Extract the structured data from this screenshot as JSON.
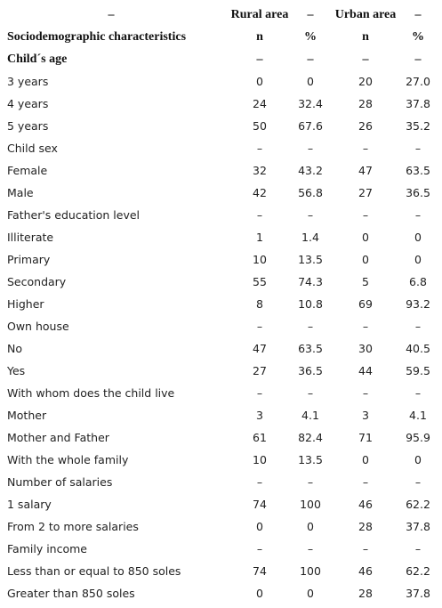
{
  "header": {
    "rows": [
      [
        "–",
        "Rural area",
        "–",
        "Urban area",
        "–"
      ],
      [
        "Sociodemographic characteristics",
        "n",
        "%",
        "n",
        "%"
      ]
    ]
  },
  "table": {
    "rows": [
      [
        "Child´s age",
        "–",
        "–",
        "–",
        "–"
      ],
      [
        "3 years",
        "0",
        "0",
        "20",
        "27.0"
      ],
      [
        "4 years",
        "24",
        "32.4",
        "28",
        "37.8"
      ],
      [
        "5 years",
        "50",
        "67.6",
        "26",
        "35.2"
      ],
      [
        "Child sex",
        "–",
        "–",
        "–",
        "–"
      ],
      [
        "Female",
        "32",
        "43.2",
        "47",
        "63.5"
      ],
      [
        "Male",
        "42",
        "56.8",
        "27",
        "36.5"
      ],
      [
        "Father's education level",
        "–",
        "–",
        "–",
        "–"
      ],
      [
        "Illiterate",
        "1",
        "1.4",
        "0",
        "0"
      ],
      [
        "Primary",
        "10",
        "13.5",
        "0",
        "0"
      ],
      [
        "Secondary",
        "55",
        "74.3",
        "5",
        "6.8"
      ],
      [
        "Higher",
        "8",
        "10.8",
        "69",
        "93.2"
      ],
      [
        "Own house",
        "–",
        "–",
        "–",
        "–"
      ],
      [
        "No",
        "47",
        "63.5",
        "30",
        "40.5"
      ],
      [
        "Yes",
        "27",
        "36.5",
        "44",
        "59.5"
      ],
      [
        "With whom does the child live",
        "–",
        "–",
        "–",
        "–"
      ],
      [
        "Mother",
        "3",
        "4.1",
        "3",
        "4.1"
      ],
      [
        "Mother and Father",
        "61",
        "82.4",
        "71",
        "95.9"
      ],
      [
        "With the whole family",
        "10",
        "13.5",
        "0",
        "0"
      ],
      [
        "Number of salaries",
        "–",
        "–",
        "–",
        "–"
      ],
      [
        "1 salary",
        "74",
        "100",
        "46",
        "62.2"
      ],
      [
        "From 2 to more salaries",
        "0",
        "0",
        "28",
        "37.8"
      ],
      [
        "Family income",
        "–",
        "–",
        "–",
        "–"
      ],
      [
        "Less than or equal to 850 soles",
        "74",
        "100",
        "46",
        "62.2"
      ],
      [
        "Greater than 850 soles",
        "0",
        "0",
        "28",
        "37.8"
      ]
    ]
  }
}
